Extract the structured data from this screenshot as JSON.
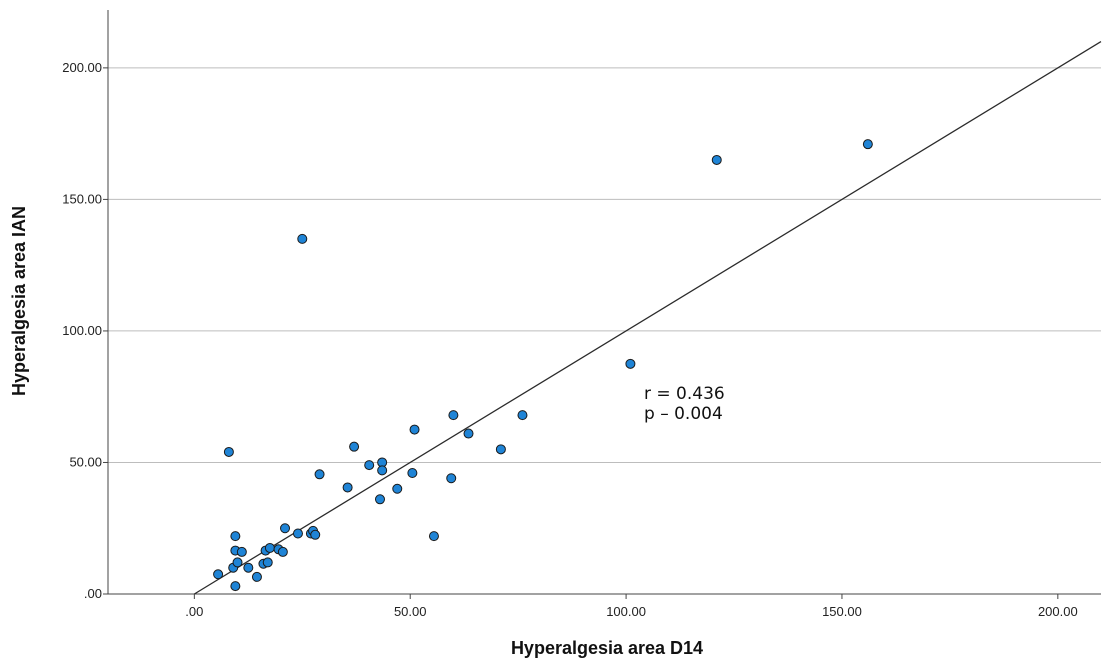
{
  "chart_data": {
    "type": "scatter",
    "title": "",
    "xlabel": "Hyperalgesia area D14",
    "ylabel": "Hyperalgesia area IAN",
    "xlim": [
      -20,
      210
    ],
    "ylim": [
      0,
      222
    ],
    "x_ticks": [
      ".00",
      "50.00",
      "100.00",
      "150.00",
      "200.00"
    ],
    "y_ticks": [
      ".00",
      "50.00",
      "100.00",
      "150.00",
      "200.00"
    ],
    "grid": "horizontal",
    "annotations": [
      "r = 0.436",
      "p – 0.004"
    ],
    "fit_line": {
      "x": [
        0,
        210
      ],
      "y": [
        0,
        210
      ]
    },
    "point_color": "#1f84d6",
    "line_color": "#2b2b2b",
    "points": [
      {
        "x": 5.5,
        "y": 7.5
      },
      {
        "x": 8,
        "y": 54
      },
      {
        "x": 9,
        "y": 10
      },
      {
        "x": 9.5,
        "y": 3
      },
      {
        "x": 9.5,
        "y": 22
      },
      {
        "x": 9.5,
        "y": 16.5
      },
      {
        "x": 10,
        "y": 12
      },
      {
        "x": 11,
        "y": 16
      },
      {
        "x": 12.5,
        "y": 10
      },
      {
        "x": 14.5,
        "y": 6.5
      },
      {
        "x": 16,
        "y": 11.5
      },
      {
        "x": 16.5,
        "y": 16.5
      },
      {
        "x": 17,
        "y": 12
      },
      {
        "x": 17.5,
        "y": 17.5
      },
      {
        "x": 19.5,
        "y": 17
      },
      {
        "x": 20.5,
        "y": 16
      },
      {
        "x": 21,
        "y": 25
      },
      {
        "x": 24,
        "y": 23
      },
      {
        "x": 25,
        "y": 135
      },
      {
        "x": 27,
        "y": 23
      },
      {
        "x": 27.5,
        "y": 24
      },
      {
        "x": 28,
        "y": 22.5
      },
      {
        "x": 29,
        "y": 45.5
      },
      {
        "x": 35.5,
        "y": 40.5
      },
      {
        "x": 37,
        "y": 56
      },
      {
        "x": 40.5,
        "y": 49
      },
      {
        "x": 43,
        "y": 36
      },
      {
        "x": 43.5,
        "y": 50
      },
      {
        "x": 43.5,
        "y": 47
      },
      {
        "x": 47,
        "y": 40
      },
      {
        "x": 50.5,
        "y": 46
      },
      {
        "x": 51,
        "y": 62.5
      },
      {
        "x": 55.5,
        "y": 22
      },
      {
        "x": 59.5,
        "y": 44
      },
      {
        "x": 60,
        "y": 68
      },
      {
        "x": 63.5,
        "y": 61
      },
      {
        "x": 71,
        "y": 55
      },
      {
        "x": 76,
        "y": 68
      },
      {
        "x": 101,
        "y": 87.5
      },
      {
        "x": 121,
        "y": 165
      },
      {
        "x": 156,
        "y": 171
      }
    ]
  }
}
